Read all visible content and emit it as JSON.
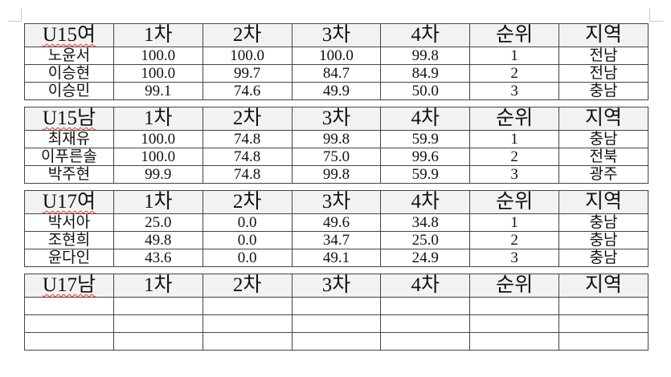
{
  "headers": [
    "1차",
    "2차",
    "3차",
    "4차",
    "순위",
    "지역"
  ],
  "tables": [
    {
      "title": "U15여",
      "rows": [
        [
          "노윤서",
          "100.0",
          "100.0",
          "100.0",
          "99.8",
          "1",
          "전남"
        ],
        [
          "이승현",
          "100.0",
          "99.7",
          "84.7",
          "84.9",
          "2",
          "전남"
        ],
        [
          "이승민",
          "99.1",
          "74.6",
          "49.9",
          "50.0",
          "3",
          "충남"
        ]
      ]
    },
    {
      "title": "U15남",
      "rows": [
        [
          "최재유",
          "100.0",
          "74.8",
          "99.8",
          "59.9",
          "1",
          "충남"
        ],
        [
          "이푸른솔",
          "100.0",
          "74.8",
          "75.0",
          "99.6",
          "2",
          "전북"
        ],
        [
          "박주현",
          "99.9",
          "74.8",
          "99.8",
          "59.9",
          "3",
          "광주"
        ]
      ]
    },
    {
      "title": "U17여",
      "rows": [
        [
          "박서아",
          "25.0",
          "0.0",
          "49.6",
          "34.8",
          "1",
          "충남"
        ],
        [
          "조현희",
          "49.8",
          "0.0",
          "34.7",
          "25.0",
          "2",
          "충남"
        ],
        [
          "윤다인",
          "43.6",
          "0.0",
          "49.1",
          "24.9",
          "3",
          "충남"
        ]
      ]
    },
    {
      "title": "U17남",
      "rows": [
        [
          "",
          "",
          "",
          "",
          "",
          "",
          ""
        ],
        [
          "",
          "",
          "",
          "",
          "",
          "",
          ""
        ],
        [
          "",
          "",
          "",
          "",
          "",
          "",
          ""
        ]
      ]
    }
  ]
}
